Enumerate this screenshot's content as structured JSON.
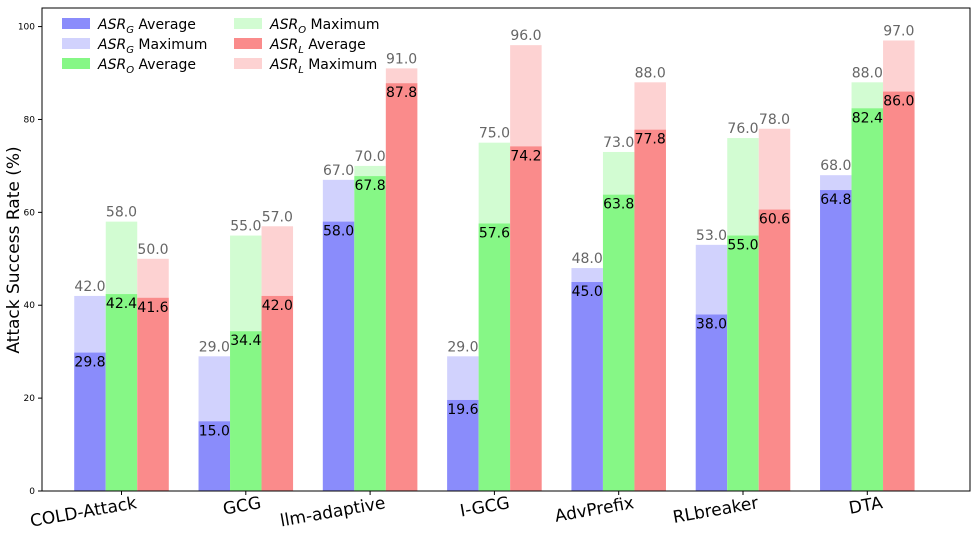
{
  "chart_data": {
    "type": "bar",
    "ylabel": "Attack Success Rate (%)",
    "xlabel": "",
    "ylim": [
      0,
      104
    ],
    "yticks": [
      0,
      20,
      40,
      60,
      80,
      100
    ],
    "categories": [
      "COLD-Attack",
      "GCG",
      "llm-adaptive",
      "I-GCG",
      "AdvPrefix",
      "RLbreaker",
      "DTA"
    ],
    "groups": [
      {
        "key": "G",
        "average_name": "ASR_G Average",
        "maximum_name": "ASR_G Maximum",
        "average": [
          29.8,
          15.0,
          58.0,
          19.6,
          45.0,
          38.0,
          64.8
        ],
        "maximum": [
          42.0,
          29.0,
          67.0,
          29.0,
          48.0,
          53.0,
          68.0
        ],
        "average_color": "#8a8cfb",
        "maximum_color": "#d1d2fd"
      },
      {
        "key": "O",
        "average_name": "ASR_O Average",
        "maximum_name": "ASR_O Maximum",
        "average": [
          42.4,
          34.4,
          67.8,
          57.6,
          63.8,
          55.0,
          82.4
        ],
        "maximum": [
          58.0,
          55.0,
          70.0,
          75.0,
          73.0,
          76.0,
          88.0
        ],
        "average_color": "#86f786",
        "maximum_color": "#d2fcd2"
      },
      {
        "key": "L",
        "average_name": "ASR_L Average",
        "maximum_name": "ASR_L Maximum",
        "average": [
          41.6,
          42.0,
          87.8,
          74.2,
          77.8,
          60.6,
          86.0
        ],
        "maximum": [
          50.0,
          57.0,
          91.0,
          96.0,
          88.0,
          78.0,
          97.0
        ],
        "average_color": "#fa8b8b",
        "maximum_color": "#fdd2d2"
      }
    ],
    "legend": {
      "placement": "top-left",
      "entries": [
        {
          "base": "ASR",
          "sub": "G",
          "suffix": " Average",
          "color": "#8a8cfb"
        },
        {
          "base": "ASR",
          "sub": "G",
          "suffix": " Maximum",
          "color": "#d1d2fd"
        },
        {
          "base": "ASR",
          "sub": "O",
          "suffix": " Average",
          "color": "#86f786"
        },
        {
          "base": "ASR",
          "sub": "O",
          "suffix": " Maximum",
          "color": "#d2fcd2"
        },
        {
          "base": "ASR",
          "sub": "L",
          "suffix": " Average",
          "color": "#fa8b8b"
        },
        {
          "base": "ASR",
          "sub": "L",
          "suffix": " Maximum",
          "color": "#fdd2d2"
        }
      ]
    }
  }
}
